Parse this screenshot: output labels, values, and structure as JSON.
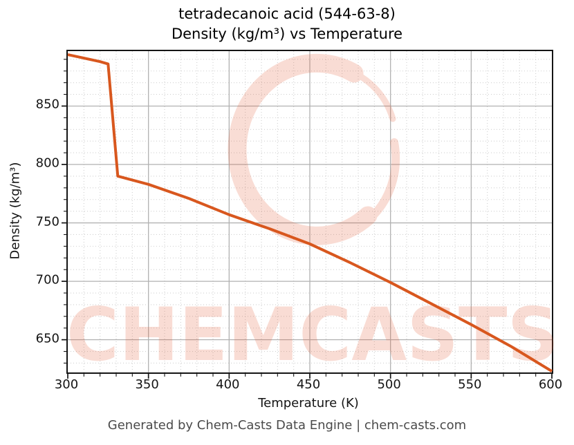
{
  "figure": {
    "title_line1": "tetradecanoic acid (544-63-8)",
    "title_line2": "Density (kg/m³) vs Temperature",
    "footer": "Generated by Chem-Casts Data Engine | chem-casts.com"
  },
  "watermark": {
    "text": "CHEMCASTS",
    "color": "#e2572e",
    "opacity": 0.2
  },
  "colors": {
    "line": "#d8571e",
    "major_grid": "#b1b1b1",
    "minor_grid": "#cfcfcf",
    "spine": "#141414",
    "tick": "#141414",
    "footer_text": "#4a4a4a"
  },
  "chart_data": {
    "type": "line",
    "title": "tetradecanoic acid (544-63-8) — Density (kg/m³) vs Temperature",
    "xlabel": "Temperature (K)",
    "ylabel": "Density (kg/m³)",
    "xlim": [
      300,
      600
    ],
    "ylim": [
      622,
      897
    ],
    "x_ticks": [
      300,
      350,
      400,
      450,
      500,
      550,
      600
    ],
    "y_ticks": [
      650,
      700,
      750,
      800,
      850
    ],
    "x_minor_step": 10,
    "y_minor_step": 10,
    "grid": true,
    "legend": false,
    "series": [
      {
        "name": "Density (kg/m³)",
        "color": "#d8571e",
        "points": [
          [
            300,
            894
          ],
          [
            310,
            891
          ],
          [
            320,
            888
          ],
          [
            325,
            886
          ],
          [
            331,
            790
          ],
          [
            350,
            783
          ],
          [
            375,
            771
          ],
          [
            400,
            757
          ],
          [
            425,
            745
          ],
          [
            450,
            732
          ],
          [
            475,
            716
          ],
          [
            500,
            699
          ],
          [
            525,
            681
          ],
          [
            550,
            663
          ],
          [
            575,
            644
          ],
          [
            600,
            623
          ]
        ]
      }
    ]
  }
}
